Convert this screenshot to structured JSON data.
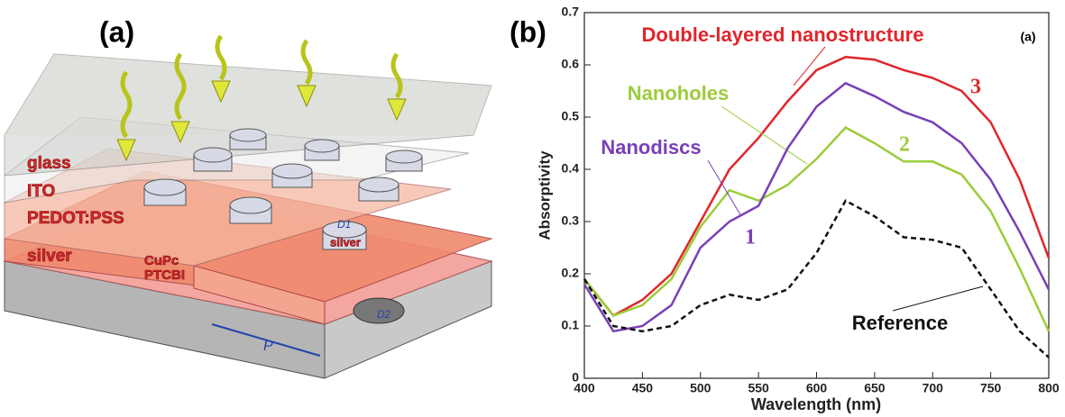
{
  "figure": {
    "panel_labels": [
      "(a)",
      "(b)"
    ]
  },
  "diagram": {
    "layers": [
      "glass",
      "ITO",
      "PEDOT:PSS",
      "silver",
      "CuPc",
      "PTCBI"
    ],
    "disc_material": "silver",
    "dimensions": [
      "D1",
      "D2",
      "P"
    ]
  },
  "chart_data": {
    "type": "line",
    "x_label": "Wavelength (nm)",
    "y_label": "Absorptivity",
    "annotation": "(a)",
    "x": [
      400,
      425,
      450,
      475,
      500,
      525,
      550,
      575,
      600,
      625,
      650,
      675,
      700,
      725,
      750,
      775,
      800
    ],
    "series": [
      {
        "name": "Double-layered nanostructure",
        "number": "3",
        "color": "#e0262b",
        "dash": false,
        "values": [
          0.19,
          0.12,
          0.15,
          0.2,
          0.3,
          0.4,
          0.46,
          0.53,
          0.59,
          0.615,
          0.61,
          0.59,
          0.575,
          0.55,
          0.49,
          0.38,
          0.23
        ]
      },
      {
        "name": "Nanoholes",
        "number": "2",
        "color": "#9ccc3a",
        "dash": false,
        "values": [
          0.19,
          0.12,
          0.14,
          0.19,
          0.29,
          0.36,
          0.34,
          0.37,
          0.42,
          0.48,
          0.45,
          0.415,
          0.415,
          0.39,
          0.32,
          0.21,
          0.09
        ]
      },
      {
        "name": "Nanodiscs",
        "number": "1",
        "color": "#7a3fb5",
        "dash": false,
        "values": [
          0.18,
          0.09,
          0.1,
          0.14,
          0.25,
          0.3,
          0.33,
          0.44,
          0.52,
          0.565,
          0.54,
          0.51,
          0.49,
          0.45,
          0.38,
          0.28,
          0.17
        ]
      },
      {
        "name": "Reference",
        "color": "#111111",
        "dash": true,
        "values": [
          0.19,
          0.1,
          0.09,
          0.1,
          0.14,
          0.16,
          0.15,
          0.17,
          0.24,
          0.34,
          0.31,
          0.27,
          0.265,
          0.25,
          0.17,
          0.09,
          0.04
        ]
      }
    ],
    "xlim": [
      400,
      800
    ],
    "ylim": [
      0,
      0.7
    ],
    "xticks": [
      400,
      450,
      500,
      550,
      600,
      650,
      700,
      750,
      800
    ],
    "yticks": [
      0,
      0.1,
      0.2,
      0.3,
      0.4,
      0.5,
      0.6,
      0.7
    ]
  }
}
